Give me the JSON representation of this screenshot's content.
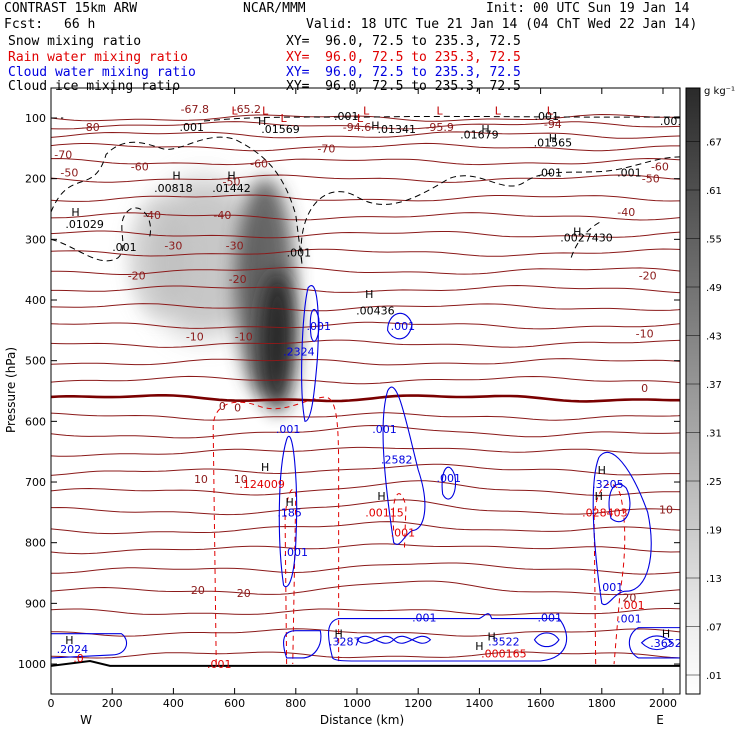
{
  "header": {
    "model": "CONTRAST 15km ARW",
    "org": "NCAR/MMM",
    "init": "Init: 00 UTC Sun 19 Jan 14",
    "fcst_label": "Fcst:",
    "fcst_value": "66 h",
    "valid": "Valid: 18 UTC Tue 21 Jan 14 (04 ChT Wed 22 Jan 14)"
  },
  "fields": [
    {
      "name": "Snow mixing ratio",
      "xy": "XY=  96.0, 72.5 to 235.3, 72.5",
      "color": "#000000"
    },
    {
      "name": "Rain water mixing ratio",
      "xy": "XY=  96.0, 72.5 to 235.3, 72.5",
      "color": "#e00000"
    },
    {
      "name": "Cloud water mixing ratio",
      "xy": "XY=  96.0, 72.5 to 235.3, 72.5",
      "color": "#0000e0"
    },
    {
      "name": "Cloud ice mixing ratio",
      "xy": "XY=  96.0, 72.5 to 235.3, 72.5",
      "color": "#000000"
    }
  ],
  "chart_data": {
    "type": "heatmap",
    "xlabel": "Distance (km)",
    "ylabel": "Pressure (hPa)",
    "xlim": [
      0,
      2100
    ],
    "ylim": [
      1050,
      50
    ],
    "x_ticks": [
      0,
      200,
      400,
      600,
      800,
      1000,
      1200,
      1400,
      1600,
      1800,
      2000
    ],
    "y_ticks": [
      100,
      200,
      300,
      400,
      500,
      600,
      700,
      800,
      900,
      1000
    ],
    "x_end_labels": {
      "left": "W",
      "right": "E"
    },
    "colorbar": {
      "unit": "g kg⁻¹",
      "levels": [
        ".01",
        ".07",
        ".13",
        ".19",
        ".25",
        ".31",
        ".37",
        ".43",
        ".49",
        ".55",
        ".61",
        ".67"
      ]
    },
    "temperature_labels": [
      {
        "text": "-80",
        "x": 130,
        "p": 115
      },
      {
        "text": "-67.8",
        "x": 470,
        "p": 85
      },
      {
        "text": "-65.2",
        "x": 640,
        "p": 85
      },
      {
        "text": "-94.6",
        "x": 1000,
        "p": 115
      },
      {
        "text": "-95.9",
        "x": 1270,
        "p": 115
      },
      {
        "text": "-94",
        "x": 1640,
        "p": 110
      },
      {
        "text": "-70",
        "x": 40,
        "p": 160
      },
      {
        "text": "-70",
        "x": 900,
        "p": 150
      },
      {
        "text": "-60",
        "x": 290,
        "p": 180
      },
      {
        "text": "-60",
        "x": 680,
        "p": 175
      },
      {
        "text": "-60",
        "x": 1990,
        "p": 180
      },
      {
        "text": "-50",
        "x": 60,
        "p": 190
      },
      {
        "text": "-50",
        "x": 590,
        "p": 205
      },
      {
        "text": "-50",
        "x": 1960,
        "p": 200
      },
      {
        "text": "-40",
        "x": 330,
        "p": 260
      },
      {
        "text": "-40",
        "x": 560,
        "p": 260
      },
      {
        "text": "-40",
        "x": 1880,
        "p": 255
      },
      {
        "text": "-30",
        "x": 400,
        "p": 310
      },
      {
        "text": "-30",
        "x": 600,
        "p": 310
      },
      {
        "text": "-20",
        "x": 280,
        "p": 360
      },
      {
        "text": "-20",
        "x": 610,
        "p": 365
      },
      {
        "text": "-20",
        "x": 1950,
        "p": 360
      },
      {
        "text": "-10",
        "x": 470,
        "p": 460
      },
      {
        "text": "-10",
        "x": 630,
        "p": 460
      },
      {
        "text": "-10",
        "x": 1940,
        "p": 455
      },
      {
        "text": "0",
        "x": 1940,
        "p": 545
      },
      {
        "text": "0",
        "x": 560,
        "p": 575
      },
      {
        "text": "0",
        "x": 610,
        "p": 577
      },
      {
        "text": "10",
        "x": 490,
        "p": 695
      },
      {
        "text": "10",
        "x": 620,
        "p": 695
      },
      {
        "text": "10",
        "x": 2010,
        "p": 745
      },
      {
        "text": "20",
        "x": 480,
        "p": 878
      },
      {
        "text": "20",
        "x": 630,
        "p": 883
      },
      {
        "text": "20",
        "x": 1890,
        "p": 890
      }
    ],
    "maxima_labels": [
      {
        "text": ".001",
        "x": 460,
        "p": 115,
        "color": "#000000"
      },
      {
        "text": ".01569",
        "x": 750,
        "p": 118,
        "color": "#000000"
      },
      {
        "text": ".01341",
        "x": 1130,
        "p": 118,
        "color": "#000000"
      },
      {
        "text": ".01679",
        "x": 1400,
        "p": 127,
        "color": "#000000"
      },
      {
        "text": ".01565",
        "x": 1640,
        "p": 140,
        "color": "#000000"
      },
      {
        "text": ".001",
        "x": 965,
        "p": 97,
        "color": "#000000"
      },
      {
        "text": ".001",
        "x": 1620,
        "p": 97,
        "color": "#000000"
      },
      {
        "text": ".001",
        "x": 2030,
        "p": 105,
        "color": "#000000"
      },
      {
        "text": ".001",
        "x": 1630,
        "p": 190,
        "color": "#000000"
      },
      {
        "text": ".001",
        "x": 1890,
        "p": 190,
        "color": "#000000"
      },
      {
        "text": ".00818",
        "x": 400,
        "p": 215,
        "color": "#000000"
      },
      {
        "text": ".01442",
        "x": 590,
        "p": 215,
        "color": "#000000"
      },
      {
        "text": ".01029",
        "x": 110,
        "p": 275,
        "color": "#000000"
      },
      {
        "text": ".001",
        "x": 240,
        "p": 313,
        "color": "#000000"
      },
      {
        "text": ".001",
        "x": 810,
        "p": 322,
        "color": "#000000"
      },
      {
        "text": ".0027430",
        "x": 1750,
        "p": 297,
        "color": "#000000"
      },
      {
        "text": ".00436",
        "x": 1060,
        "p": 417,
        "color": "#000000"
      },
      {
        "text": ".001",
        "x": 1150,
        "p": 443,
        "color": "#0000e0"
      },
      {
        "text": ".001",
        "x": 875,
        "p": 443,
        "color": "#0000e0"
      },
      {
        "text": ".2324",
        "x": 810,
        "p": 485,
        "color": "#0000e0"
      },
      {
        "text": ".001",
        "x": 775,
        "p": 613,
        "color": "#0000e0"
      },
      {
        "text": ".001",
        "x": 1090,
        "p": 613,
        "color": "#0000e0"
      },
      {
        "text": ".2582",
        "x": 1130,
        "p": 663,
        "color": "#0000e0"
      },
      {
        "text": ".001",
        "x": 1300,
        "p": 693,
        "color": "#0000e0"
      },
      {
        "text": ".124009",
        "x": 690,
        "p": 703,
        "color": "#e00000"
      },
      {
        "text": ".185",
        "x": 780,
        "p": 750,
        "color": "#0000e0"
      },
      {
        "text": ".00115",
        "x": 1090,
        "p": 750,
        "color": "#e00000"
      },
      {
        "text": ".001",
        "x": 1150,
        "p": 783,
        "color": "#e00000"
      },
      {
        "text": ".001",
        "x": 800,
        "p": 815,
        "color": "#0000e0"
      },
      {
        "text": ".3205",
        "x": 1820,
        "p": 703,
        "color": "#0000e0"
      },
      {
        "text": ".028403",
        "x": 1810,
        "p": 750,
        "color": "#e00000"
      },
      {
        "text": ".001",
        "x": 1830,
        "p": 873,
        "color": "#0000e0"
      },
      {
        "text": ".001",
        "x": 1900,
        "p": 903,
        "color": "#e00000"
      },
      {
        "text": ".001",
        "x": 1890,
        "p": 925,
        "color": "#0000e0"
      },
      {
        "text": ".001",
        "x": 1220,
        "p": 923,
        "color": "#0000e0"
      },
      {
        "text": ".001",
        "x": 1630,
        "p": 923,
        "color": "#0000e0"
      },
      {
        "text": ".3287",
        "x": 960,
        "p": 963,
        "color": "#0000e0"
      },
      {
        "text": ".3522",
        "x": 1480,
        "p": 963,
        "color": "#0000e0"
      },
      {
        "text": ".000165",
        "x": 1480,
        "p": 983,
        "color": "#e00000"
      },
      {
        "text": ".2024",
        "x": 70,
        "p": 975,
        "color": "#0000e0"
      },
      {
        "text": ".0",
        "x": 90,
        "p": 990,
        "color": "#e00000"
      },
      {
        "text": ".3652",
        "x": 2010,
        "p": 965,
        "color": "#0000e0"
      },
      {
        "text": ".001",
        "x": 550,
        "p": 1000,
        "color": "#e00000"
      }
    ],
    "h_markers": [
      {
        "x": 690,
        "p": 105
      },
      {
        "x": 1060,
        "p": 112
      },
      {
        "x": 1420,
        "p": 118
      },
      {
        "x": 1640,
        "p": 133
      },
      {
        "x": 410,
        "p": 195
      },
      {
        "x": 590,
        "p": 195
      },
      {
        "x": 80,
        "p": 255
      },
      {
        "x": 1720,
        "p": 287
      },
      {
        "x": 1040,
        "p": 390
      },
      {
        "x": 700,
        "p": 675
      },
      {
        "x": 1080,
        "p": 723
      },
      {
        "x": 1790,
        "p": 723
      },
      {
        "x": 1800,
        "p": 680
      },
      {
        "x": 780,
        "p": 733
      },
      {
        "x": 60,
        "p": 960
      },
      {
        "x": 940,
        "p": 950
      },
      {
        "x": 1440,
        "p": 955
      },
      {
        "x": 2010,
        "p": 950
      },
      {
        "x": 1400,
        "p": 970
      }
    ],
    "l_markers": [
      {
        "x": 600,
        "p": 88
      },
      {
        "x": 700,
        "p": 88
      },
      {
        "x": 1030,
        "p": 88
      },
      {
        "x": 1270,
        "p": 88
      },
      {
        "x": 1460,
        "p": 88
      },
      {
        "x": 1630,
        "p": 88
      },
      {
        "x": 760,
        "p": 100
      },
      {
        "x": 1010,
        "p": 100
      }
    ]
  }
}
